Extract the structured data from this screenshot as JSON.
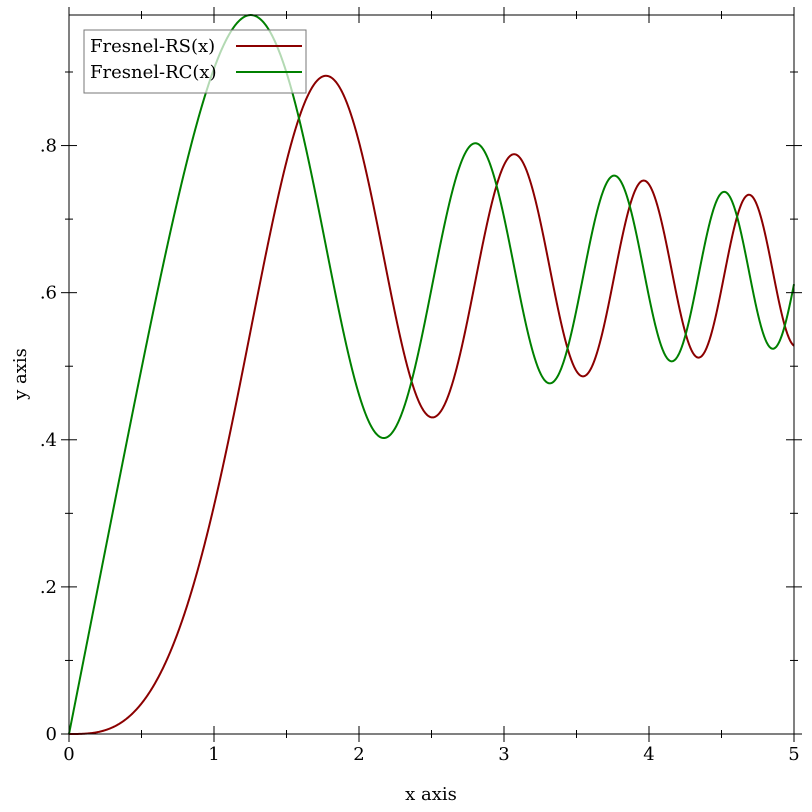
{
  "chart_data": {
    "type": "line",
    "title": "",
    "xlabel": "x axis",
    "ylabel": "y axis",
    "xlim": [
      0,
      5
    ],
    "ylim": [
      0,
      0.9775
    ],
    "grid": false,
    "legend_position": "top-left",
    "x_ticks": [
      {
        "value": 0,
        "label": "0"
      },
      {
        "value": 1,
        "label": "1"
      },
      {
        "value": 2,
        "label": "2"
      },
      {
        "value": 3,
        "label": "3"
      },
      {
        "value": 4,
        "label": "4"
      },
      {
        "value": 5,
        "label": "5"
      }
    ],
    "y_ticks": [
      {
        "value": 0,
        "label": "0"
      },
      {
        "value": 0.2,
        "label": ".2"
      },
      {
        "value": 0.4,
        "label": ".4"
      },
      {
        "value": 0.6,
        "label": ".6"
      },
      {
        "value": 0.8,
        "label": ".8"
      }
    ],
    "series": [
      {
        "name": "Fresnel-RS(x)",
        "color": "#8b0000",
        "integrand": "sin(t^2)",
        "x": [
          0,
          1,
          1.772,
          2,
          2.5,
          3,
          3.5,
          4,
          4.5,
          5
        ],
        "y": [
          0,
          0.31,
          0.895,
          0.805,
          0.431,
          0.774,
          0.49,
          0.747,
          0.512,
          0.528
        ]
      },
      {
        "name": "Fresnel-RC(x)",
        "color": "#008000",
        "integrand": "cos(t^2)",
        "x": [
          0,
          1,
          1.253,
          2,
          2.17,
          3,
          3.5,
          4,
          4.5,
          5
        ],
        "y": [
          0,
          0.905,
          0.978,
          0.461,
          0.404,
          0.703,
          0.563,
          0.594,
          0.685,
          0.611
        ]
      }
    ]
  }
}
